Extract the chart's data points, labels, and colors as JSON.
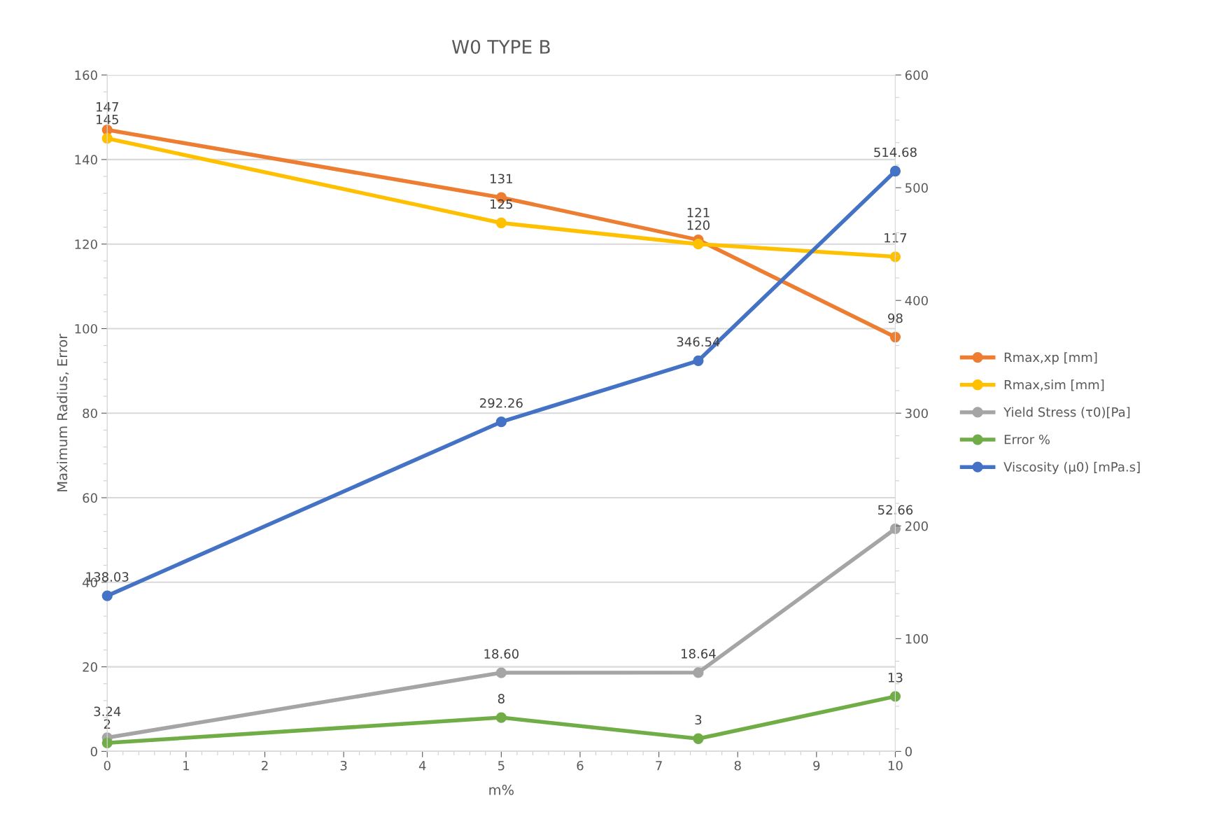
{
  "chart_data": {
    "type": "line",
    "title": "W0 TYPE B",
    "xlabel": "m%",
    "ylabel": "Maximum Radius, Error",
    "x": [
      0,
      5,
      7.5,
      10
    ],
    "series": [
      {
        "name": "Rmax,xp [mm]",
        "color": "#ed7d31",
        "values": [
          147,
          131,
          121,
          98
        ],
        "value_labels": [
          "147",
          "131",
          "121",
          "98"
        ]
      },
      {
        "name": "Rmax,sim [mm]",
        "color": "#ffc000",
        "values": [
          145,
          125,
          120,
          117
        ],
        "value_labels": [
          "145",
          "125",
          "120",
          "117"
        ]
      },
      {
        "name": "Yield Stress (τ0)[Pa]",
        "color": "#a5a5a5",
        "values": [
          3.24,
          18.6,
          18.64,
          52.66
        ],
        "value_labels": [
          "3.24",
          "18.60",
          "18.64",
          "52.66"
        ]
      },
      {
        "name": "Error %",
        "color": "#70ad47",
        "values": [
          2,
          8,
          3,
          13
        ],
        "value_labels": [
          "2",
          "8",
          "3",
          "13"
        ]
      },
      {
        "name": "Viscosity (μ0) [mPa.s]",
        "color": "#4472c4",
        "axis": "y2",
        "values": [
          138.03,
          292.26,
          346.54,
          514.68
        ],
        "value_labels": [
          "138.03",
          "292.26",
          "346.54",
          "514.68"
        ]
      }
    ],
    "xlim": [
      0,
      10
    ],
    "xticks": [
      0,
      1,
      2,
      3,
      4,
      5,
      6,
      7,
      8,
      9,
      10
    ],
    "ylim": [
      0,
      160
    ],
    "yticks": [
      0,
      20,
      40,
      60,
      80,
      100,
      120,
      140,
      160
    ],
    "y2lim": [
      0,
      600
    ],
    "y2ticks": [
      0,
      100,
      200,
      300,
      400,
      500,
      600
    ],
    "grid": "y",
    "legend": "right",
    "marker": "circle",
    "line_style": "solid"
  }
}
